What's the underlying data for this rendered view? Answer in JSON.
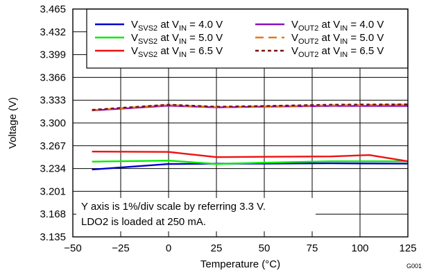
{
  "chart_data": {
    "type": "line",
    "xlabel": "Temperature (°C)",
    "ylabel": "Voltage (V)",
    "xlim": [
      -50,
      125
    ],
    "ylim": [
      3.135,
      3.465
    ],
    "x_ticks": [
      "−50",
      "−25",
      "0",
      "25",
      "50",
      "75",
      "100",
      "125"
    ],
    "y_ticks": [
      "3.465",
      "3.432",
      "3.399",
      "3.366",
      "3.333",
      "3.300",
      "3.267",
      "3.234",
      "3.201",
      "3.168",
      "3.135"
    ],
    "grid": true,
    "legend_position": "top-right",
    "annotations": [
      "Y axis is 1%/div scale by referring 3.3 V.",
      "LDO2 is loaded at 250 mA."
    ],
    "figure_id": "G001",
    "series": [
      {
        "legend": {
          "main": "V",
          "sub": "SVS2",
          "mid": " at V",
          "sub2": "IN",
          "tail": " = 4.0 V"
        },
        "color": "#0000cc",
        "dash": "solid",
        "x": [
          -40,
          0,
          25,
          50,
          85,
          125
        ],
        "y": [
          3.2325,
          3.2405,
          3.241,
          3.241,
          3.2415,
          3.241
        ]
      },
      {
        "legend": {
          "main": "V",
          "sub": "SVS2",
          "mid": " at V",
          "sub2": "IN",
          "tail": " = 5.0 V"
        },
        "color": "#00ee00",
        "dash": "solid",
        "x": [
          -40,
          0,
          25,
          50,
          85,
          125
        ],
        "y": [
          3.244,
          3.2455,
          3.2405,
          3.2425,
          3.2445,
          3.2445
        ]
      },
      {
        "legend": {
          "main": "V",
          "sub": "SVS2",
          "mid": " at V",
          "sub2": "IN",
          "tail": " = 6.5 V"
        },
        "color": "#ee1111",
        "dash": "solid",
        "x": [
          -40,
          0,
          25,
          50,
          85,
          105,
          125
        ],
        "y": [
          3.2585,
          3.258,
          3.2505,
          3.251,
          3.2515,
          3.2535,
          3.2445
        ]
      },
      {
        "legend": {
          "main": "V",
          "sub": "OUT2",
          "mid": " at V",
          "sub2": "IN",
          "tail": " = 4.0 V"
        },
        "color": "#8811bb",
        "dash": "solid",
        "x": [
          -40,
          0,
          25,
          50,
          85,
          125
        ],
        "y": [
          3.318,
          3.325,
          3.3225,
          3.3235,
          3.3245,
          3.3245
        ]
      },
      {
        "legend": {
          "main": "V",
          "sub": "OUT2",
          "mid": " at V",
          "sub2": "IN",
          "tail": " = 5.0 V"
        },
        "color": "#ee7711",
        "dash": "long",
        "x": [
          -40,
          0,
          25,
          50,
          85,
          125
        ],
        "y": [
          3.3185,
          3.326,
          3.323,
          3.324,
          3.3255,
          3.3265
        ]
      },
      {
        "legend": {
          "main": "V",
          "sub": "OUT2",
          "mid": " at V",
          "sub2": "IN",
          "tail": " = 6.5 V"
        },
        "color": "#771111",
        "dash": "short",
        "x": [
          -40,
          0,
          25,
          50,
          85,
          125
        ],
        "y": [
          3.319,
          3.3265,
          3.3235,
          3.3245,
          3.3265,
          3.327
        ]
      }
    ]
  }
}
